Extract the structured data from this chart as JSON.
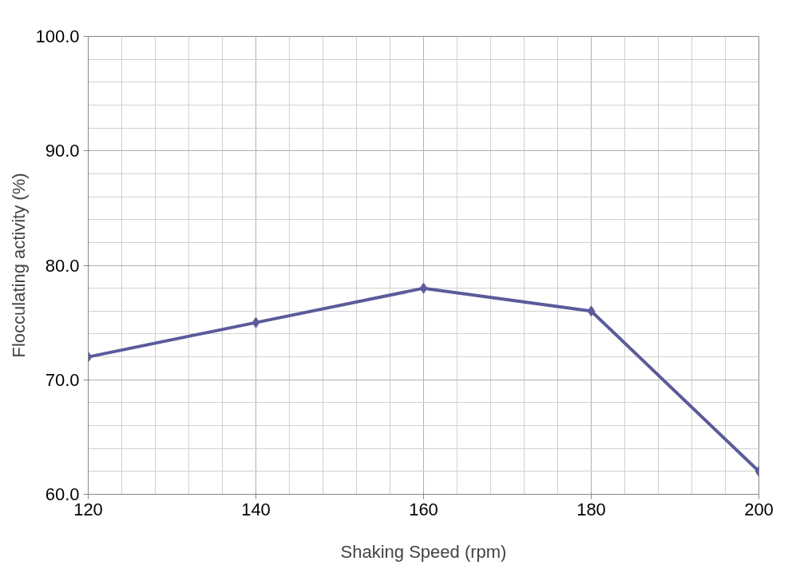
{
  "chart_data": {
    "type": "line",
    "xlabel": "Shaking Speed (rpm)",
    "ylabel": "Flocculating activity (%)",
    "x": [
      120,
      140,
      160,
      180,
      200
    ],
    "series": [
      {
        "color": "#5b5b9b",
        "values": [
          72,
          75,
          78,
          76,
          62
        ]
      }
    ],
    "xlim": [
      120,
      200
    ],
    "xticks": [
      120,
      140,
      160,
      180,
      200
    ],
    "ylim": [
      60,
      100
    ],
    "yticks": [
      {
        "value": 60,
        "label": "60.0"
      },
      {
        "value": 70,
        "label": "70.0"
      },
      {
        "value": 80,
        "label": "80.0"
      },
      {
        "value": 90,
        "label": "90.0"
      },
      {
        "value": 100,
        "label": "100.0"
      }
    ],
    "grid": true,
    "marker": "diamond",
    "line_style": "solid"
  }
}
